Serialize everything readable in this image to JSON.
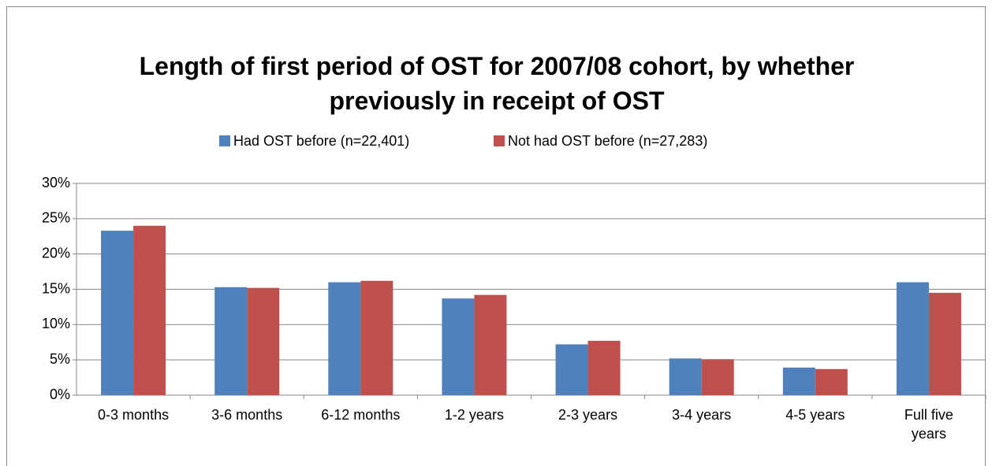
{
  "chart_data": {
    "type": "bar",
    "title": "Length of first period of OST for 2007/08 cohort, by whether previously in receipt of OST",
    "categories": [
      "0-3 months",
      "3-6 months",
      "6-12 months",
      "1-2 years",
      "2-3 years",
      "3-4 years",
      "4-5 years",
      "Full five years"
    ],
    "series": [
      {
        "name": "Had OST before (n=22,401)",
        "color": "#4f81bd",
        "values": [
          23.3,
          15.3,
          16.0,
          13.7,
          7.2,
          5.2,
          3.9,
          16.0
        ]
      },
      {
        "name": "Not had OST before (n=27,283)",
        "color": "#c0504d",
        "values": [
          24.0,
          15.2,
          16.2,
          14.2,
          7.7,
          5.1,
          3.7,
          14.5
        ]
      }
    ],
    "ylim": [
      0,
      30
    ],
    "yticks": [
      {
        "value": 0,
        "label": "0%"
      },
      {
        "value": 5,
        "label": "5%"
      },
      {
        "value": 10,
        "label": "10%"
      },
      {
        "value": 15,
        "label": "15%"
      },
      {
        "value": 20,
        "label": "20%"
      },
      {
        "value": 25,
        "label": "25%"
      },
      {
        "value": 30,
        "label": "30%"
      }
    ],
    "grid": true,
    "legend": "top"
  }
}
